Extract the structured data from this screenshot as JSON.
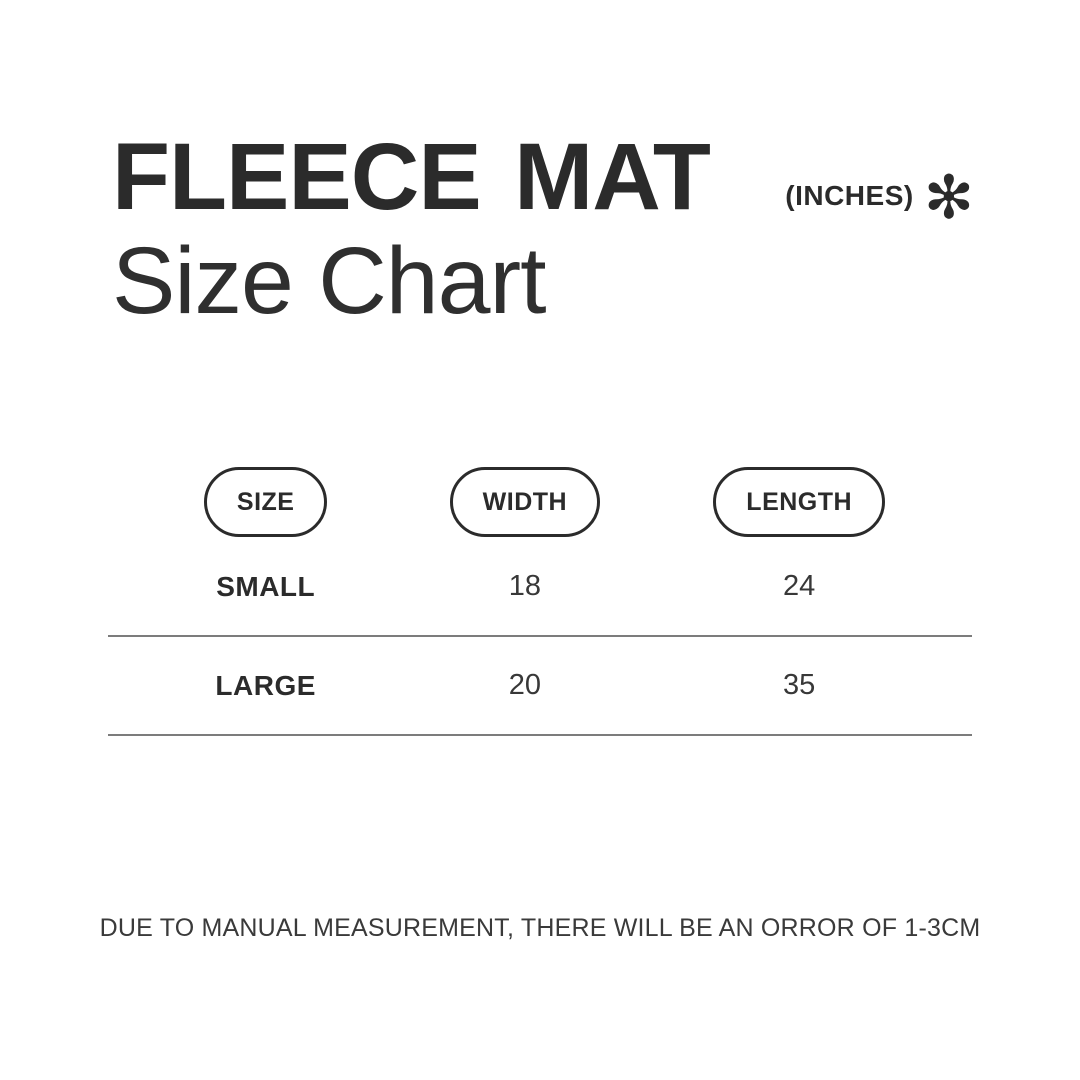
{
  "colors": {
    "background": "#ffffff",
    "text": "#2b2b2b",
    "divider": "#7c7c7c"
  },
  "header": {
    "title_line1": "FLEECE MAT",
    "title_line2": "Size Chart",
    "unit_label": "(INCHES)",
    "unit_mark": "✻"
  },
  "table": {
    "columns": [
      {
        "label": "SIZE"
      },
      {
        "label": "WIDTH"
      },
      {
        "label": "LENGTH"
      }
    ],
    "rows": [
      {
        "size": "SMALL",
        "width": "18",
        "length": "24"
      },
      {
        "size": "LARGE",
        "width": "20",
        "length": "35"
      }
    ]
  },
  "footer": {
    "note": "DUE TO MANUAL MEASUREMENT, THERE WILL BE AN ORROR OF 1-3CM"
  },
  "chart_data": {
    "type": "table",
    "title": "FLEECE MAT Size Chart",
    "unit": "INCHES",
    "columns": [
      "SIZE",
      "WIDTH",
      "LENGTH"
    ],
    "rows": [
      [
        "SMALL",
        18,
        24
      ],
      [
        "LARGE",
        20,
        35
      ]
    ],
    "note": "DUE TO MANUAL MEASUREMENT, THERE WILL BE AN ORROR OF 1-3CM"
  }
}
